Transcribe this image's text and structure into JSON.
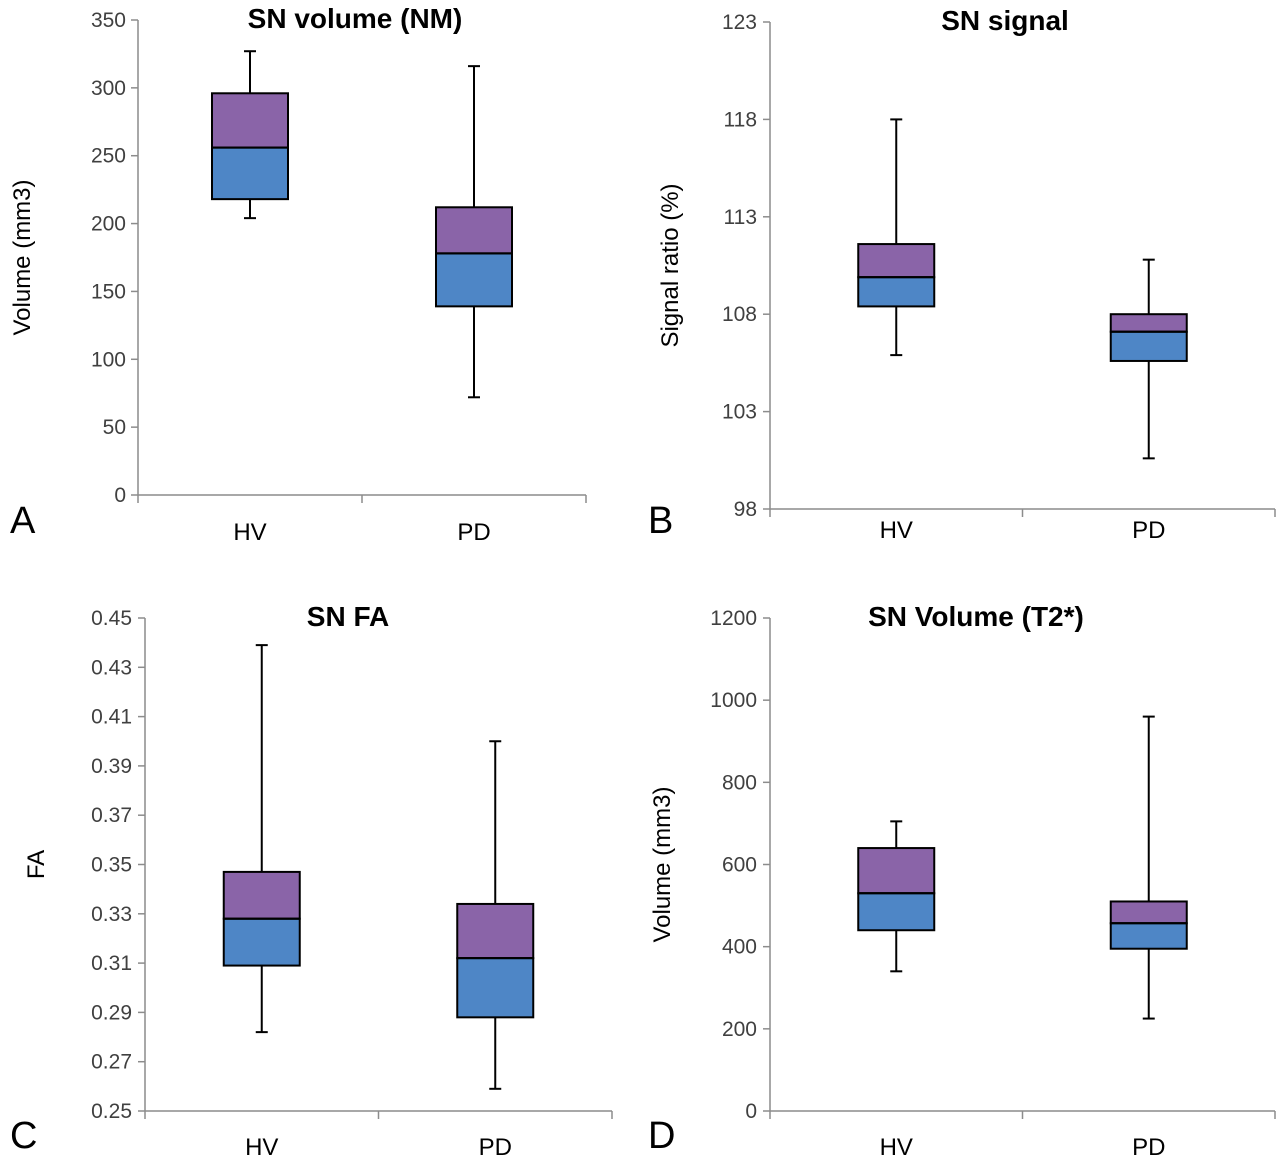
{
  "colors": {
    "q1_box": "#4e86c6",
    "q3_box": "#8a64a8",
    "axis": "#8c8c8c",
    "text": "#000000"
  },
  "chart_data": [
    {
      "type": "box",
      "panel_letter": "A",
      "title": "SN volume (NM)",
      "ylabel": "Volume (mm3)",
      "xlabel": "",
      "ylim": [
        0,
        350
      ],
      "yticks": [
        "0",
        "50",
        "100",
        "150",
        "200",
        "250",
        "300",
        "350"
      ],
      "categories": [
        "HV",
        "PD"
      ],
      "series": [
        {
          "category": "HV",
          "min": 204,
          "q1": 218,
          "median": 256,
          "q3": 296,
          "max": 327
        },
        {
          "category": "PD",
          "min": 72,
          "q1": 139,
          "median": 178,
          "q3": 212,
          "max": 316
        }
      ]
    },
    {
      "type": "box",
      "panel_letter": "B",
      "title": "SN signal",
      "ylabel": "Signal ratio (%)",
      "xlabel": "",
      "ylim": [
        98,
        123
      ],
      "yticks": [
        "98",
        "103",
        "108",
        "113",
        "118",
        "123"
      ],
      "categories": [
        "HV",
        "PD"
      ],
      "series": [
        {
          "category": "HV",
          "min": 105.9,
          "q1": 108.4,
          "median": 109.9,
          "q3": 111.6,
          "max": 118.0
        },
        {
          "category": "PD",
          "min": 100.6,
          "q1": 105.6,
          "median": 107.1,
          "q3": 108.0,
          "max": 110.8
        }
      ]
    },
    {
      "type": "box",
      "panel_letter": "C",
      "title": "SN FA",
      "ylabel": "FA",
      "xlabel": "",
      "ylim": [
        0.25,
        0.45
      ],
      "yticks": [
        "0.25",
        "0.27",
        "0.29",
        "0.31",
        "0.33",
        "0.35",
        "0.37",
        "0.39",
        "0.41",
        "0.43",
        "0.45"
      ],
      "categories": [
        "HV",
        "PD"
      ],
      "series": [
        {
          "category": "HV",
          "min": 0.282,
          "q1": 0.309,
          "median": 0.328,
          "q3": 0.347,
          "max": 0.439
        },
        {
          "category": "PD",
          "min": 0.259,
          "q1": 0.288,
          "median": 0.312,
          "q3": 0.334,
          "max": 0.4
        }
      ]
    },
    {
      "type": "box",
      "panel_letter": "D",
      "title": "SN Volume (T2*)",
      "ylabel": "Volume (mm3)",
      "xlabel": "",
      "ylim": [
        0,
        1200
      ],
      "yticks": [
        "0",
        "200",
        "400",
        "600",
        "800",
        "1000",
        "1200"
      ],
      "categories": [
        "HV",
        "PD"
      ],
      "series": [
        {
          "category": "HV",
          "min": 340,
          "q1": 440,
          "median": 530,
          "q3": 640,
          "max": 705
        },
        {
          "category": "PD",
          "min": 225,
          "q1": 395,
          "median": 457,
          "q3": 510,
          "max": 960
        }
      ]
    }
  ]
}
